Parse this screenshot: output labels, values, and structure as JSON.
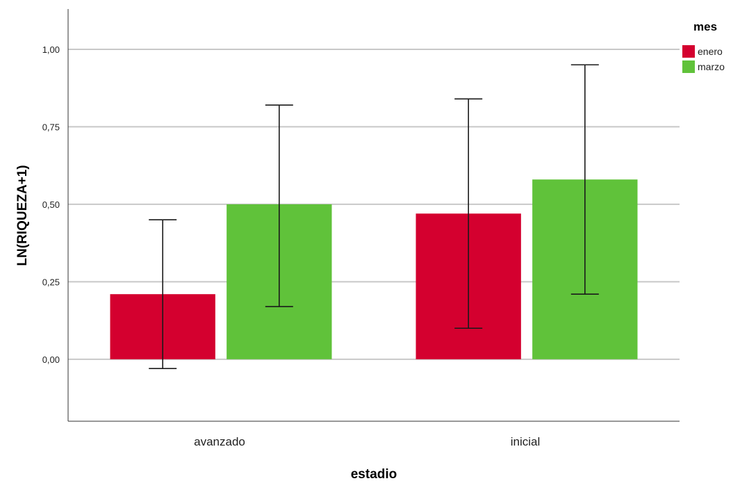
{
  "chart_data": {
    "type": "bar",
    "xlabel": "estadio",
    "ylabel": "LN(RIQUEZA+1)",
    "ylim": [
      -0.2,
      1.13
    ],
    "yticks": [
      0.0,
      0.25,
      0.5,
      0.75,
      1.0
    ],
    "ytick_labels": [
      "0,00",
      "0,25",
      "0,50",
      "0,75",
      "1,00"
    ],
    "categories": [
      "avanzado",
      "inicial"
    ],
    "grid": true,
    "legend": {
      "title": "mes",
      "position": "top-right"
    },
    "series": [
      {
        "name": "enero",
        "color": "#d4002f",
        "values": [
          0.21,
          0.47
        ],
        "err_low": [
          -0.03,
          0.1
        ],
        "err_high": [
          0.45,
          0.84
        ]
      },
      {
        "name": "marzo",
        "color": "#60c23a",
        "values": [
          0.5,
          0.58
        ],
        "err_low": [
          0.17,
          0.21
        ],
        "err_high": [
          0.82,
          0.95
        ]
      }
    ]
  }
}
